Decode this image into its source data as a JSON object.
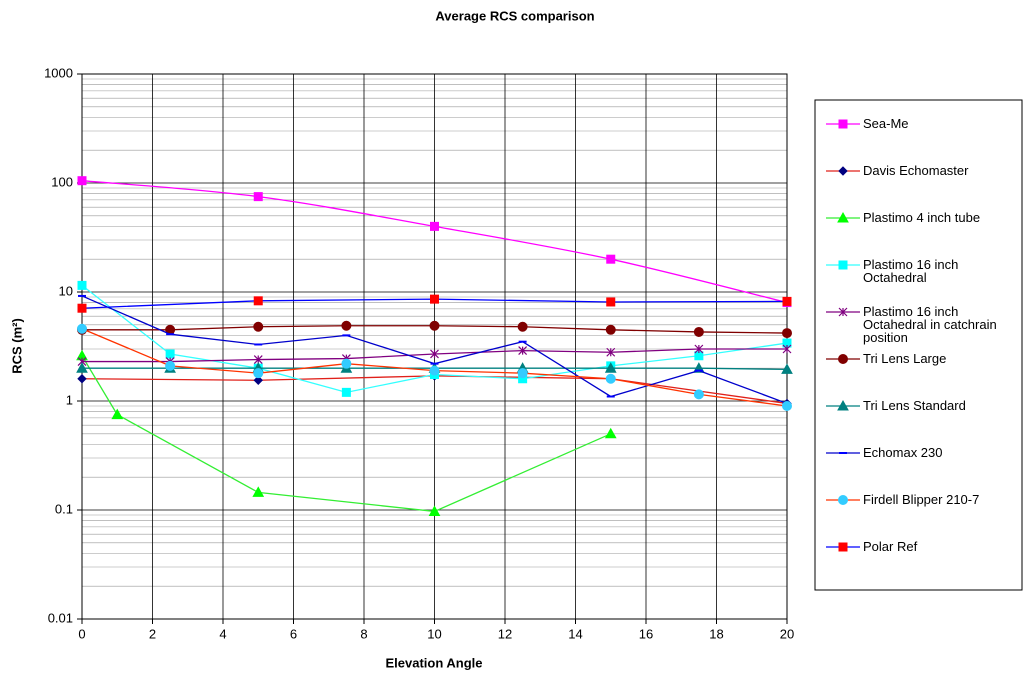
{
  "chart_data": {
    "type": "line",
    "title": "Average RCS comparison",
    "x_label": "Elevation Angle",
    "y_label": "RCS (m²)",
    "log_y": true,
    "grid": true,
    "minor_grid": true,
    "legend": "right",
    "xlim": [
      0,
      20
    ],
    "xticks": [
      0,
      2,
      4,
      6,
      8,
      10,
      12,
      14,
      16,
      18,
      20
    ],
    "ylim": [
      0.01,
      1000
    ],
    "yticks": [
      0.01,
      0.1,
      1,
      10,
      100,
      1000
    ],
    "series": [
      {
        "name": "Sea-Me",
        "color": "#ff00ff",
        "marker_color": "#ff00ff",
        "marker": "square",
        "smooth": true,
        "x": [
          0,
          5,
          10,
          15,
          20
        ],
        "values": [
          105,
          75,
          40,
          20,
          8
        ]
      },
      {
        "name": "Davis Echomaster",
        "color": "#e0201a",
        "marker_color": "#000080",
        "marker": "diamond",
        "x": [
          0,
          5,
          10,
          15,
          20
        ],
        "values": [
          1.6,
          1.55,
          1.7,
          1.6,
          0.95
        ]
      },
      {
        "name": "Plastimo 4 inch tube",
        "color": "#33ee33",
        "marker_color": "#00ff00",
        "marker": "triangle",
        "x": [
          0,
          1,
          5,
          10,
          15
        ],
        "values": [
          2.6,
          0.75,
          0.145,
          0.097,
          0.5
        ]
      },
      {
        "name": "Plastimo 16 inch Octahedral",
        "color": "#33ffff",
        "marker_color": "#00ffff",
        "marker": "square",
        "x": [
          0,
          2.5,
          5,
          7.5,
          10,
          12.5,
          15,
          17.5,
          20
        ],
        "values": [
          11.5,
          2.7,
          2.0,
          1.2,
          1.75,
          1.6,
          2.1,
          2.6,
          3.4
        ]
      },
      {
        "name": "Plastimo 16 inch Octahedral in catchrain position",
        "color": "#800080",
        "marker_color": "#800080",
        "marker": "star",
        "x": [
          0,
          2.5,
          5,
          7.5,
          10,
          12.5,
          15,
          17.5,
          20
        ],
        "values": [
          2.3,
          2.3,
          2.4,
          2.45,
          2.7,
          2.9,
          2.8,
          3.0,
          3.0
        ]
      },
      {
        "name": "Tri Lens Large",
        "color": "#800000",
        "marker_color": "#800000",
        "marker": "circle",
        "x": [
          0,
          2.5,
          5,
          7.5,
          10,
          12.5,
          15,
          17.5,
          20
        ],
        "values": [
          4.5,
          4.5,
          4.8,
          4.9,
          4.9,
          4.8,
          4.5,
          4.3,
          4.2
        ]
      },
      {
        "name": "Tri Lens Standard",
        "color": "#008080",
        "marker_color": "#008080",
        "marker": "triangle",
        "x": [
          0,
          2.5,
          5,
          7.5,
          10,
          12.5,
          15,
          17.5,
          20
        ],
        "values": [
          2.0,
          2.0,
          2.0,
          2.0,
          2.0,
          2.0,
          2.0,
          2.0,
          1.95
        ]
      },
      {
        "name": "Echomax 230",
        "color": "#0000cc",
        "marker_color": "#0000ff",
        "marker": "dash",
        "x": [
          0,
          2.5,
          5,
          7.5,
          10,
          12.5,
          15,
          17.5,
          20
        ],
        "values": [
          9.2,
          4.1,
          3.3,
          4.0,
          2.2,
          3.5,
          1.1,
          1.9,
          0.95
        ]
      },
      {
        "name": "Firdell Blipper 210-7",
        "color": "#ff3300",
        "marker_color": "#33ccff",
        "marker": "circle",
        "x": [
          0,
          2.5,
          5,
          7.5,
          10,
          12.5,
          15,
          17.5,
          20
        ],
        "values": [
          4.6,
          2.1,
          1.8,
          2.2,
          1.9,
          1.8,
          1.6,
          1.15,
          0.9
        ]
      },
      {
        "name": "Polar Ref",
        "color": "#0000ff",
        "marker_color": "#ff0000",
        "marker": "square",
        "x": [
          0,
          5,
          10,
          15,
          20
        ],
        "values": [
          7.1,
          8.3,
          8.6,
          8.1,
          8.2
        ]
      }
    ]
  }
}
